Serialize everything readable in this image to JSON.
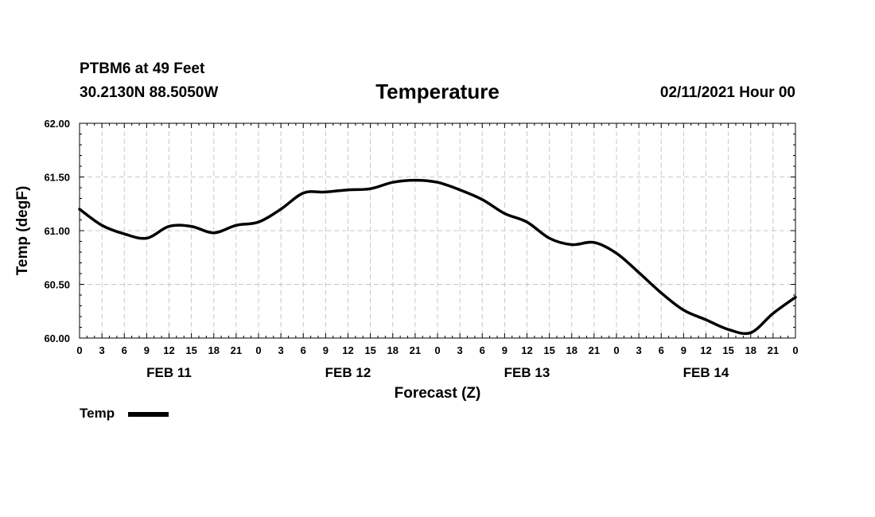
{
  "header": {
    "station": "PTBM6 at 49 Feet",
    "coords": "30.2130N 88.5050W",
    "title": "Temperature",
    "datetime": "02/11/2021 Hour 00"
  },
  "chart_data": {
    "type": "line",
    "title": "Temperature",
    "xlabel": "Forecast (Z)",
    "ylabel": "Temp (degF)",
    "ylim": [
      60.0,
      62.0
    ],
    "yticks": [
      "60.00",
      "60.50",
      "61.00",
      "61.50",
      "62.00"
    ],
    "yticks_values": [
      60.0,
      60.5,
      61.0,
      61.5,
      62.0
    ],
    "xlim": [
      0,
      96
    ],
    "xtick_labels": [
      "0",
      "3",
      "6",
      "9",
      "12",
      "15",
      "18",
      "21",
      "0",
      "3",
      "6",
      "9",
      "12",
      "15",
      "18",
      "21",
      "0",
      "3",
      "6",
      "9",
      "12",
      "15",
      "18",
      "21",
      "0",
      "3",
      "6",
      "9",
      "12",
      "15",
      "18",
      "21",
      "0"
    ],
    "day_labels": [
      {
        "label": "FEB 11",
        "hour": 12
      },
      {
        "label": "FEB 12",
        "hour": 36
      },
      {
        "label": "FEB 13",
        "hour": 60
      },
      {
        "label": "FEB 14",
        "hour": 84
      }
    ],
    "grid": true,
    "legend": {
      "position": "bottom-left",
      "entries": [
        "Temp"
      ]
    },
    "series": [
      {
        "name": "Temp",
        "x": [
          0,
          3,
          6,
          9,
          12,
          15,
          18,
          21,
          24,
          27,
          30,
          33,
          36,
          39,
          42,
          45,
          48,
          51,
          54,
          57,
          60,
          63,
          66,
          69,
          72,
          75,
          78,
          81,
          84,
          87,
          90,
          93,
          96
        ],
        "values": [
          61.2,
          61.05,
          60.97,
          60.93,
          61.04,
          61.04,
          60.98,
          61.05,
          61.08,
          61.2,
          61.35,
          61.36,
          61.38,
          61.39,
          61.45,
          61.47,
          61.45,
          61.38,
          61.29,
          61.16,
          61.08,
          60.93,
          60.87,
          60.89,
          60.79,
          60.61,
          60.42,
          60.26,
          60.17,
          60.08,
          60.05,
          60.23,
          60.38
        ]
      }
    ]
  }
}
